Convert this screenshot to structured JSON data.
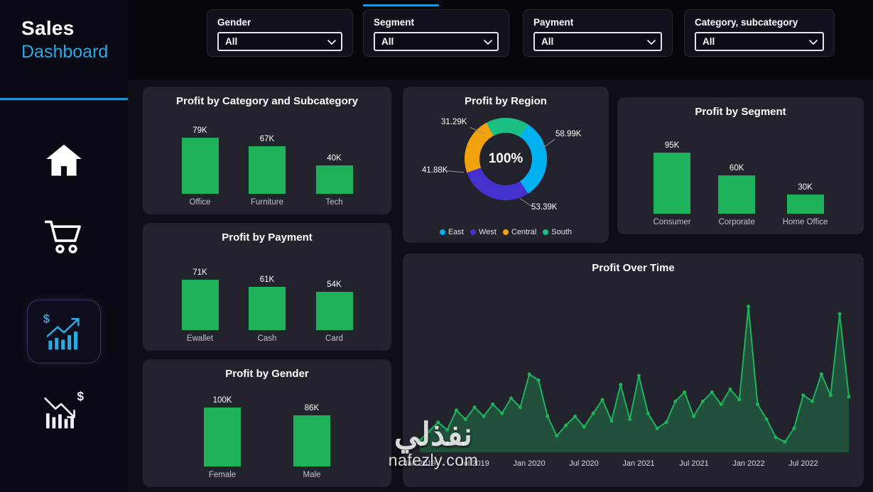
{
  "colors": {
    "accent_cyan": "#2da9e1",
    "accent_rule": "#1698d6",
    "green": "#1eb35b",
    "card_bg": "#23232e",
    "page_bg": "#06060d",
    "sidebar_bg": "#0a0a14"
  },
  "sidebar": {
    "title_line1": "Sales",
    "title_line2": "Dashboard"
  },
  "icons": {
    "home": "home-icon",
    "cart": "shopping-cart-icon",
    "sales_growth": "sales-growth-chart-icon",
    "sales_decline": "sales-decline-chart-icon",
    "dropdown": "chevron-down-icon"
  },
  "filters": [
    {
      "label": "Gender",
      "value": "All"
    },
    {
      "label": "Segment",
      "value": "All"
    },
    {
      "label": "Payment",
      "value": "All"
    },
    {
      "label": "Category, subcategory",
      "value": "All"
    }
  ],
  "watermark": {
    "line1": "نفذلي",
    "line2": "nafezly.com"
  },
  "chart_data": [
    {
      "id": "profit-by-category",
      "type": "bar",
      "title": "Profit by Category and Subcategory",
      "categories": [
        "Office",
        "Furniture",
        "Tech"
      ],
      "values": [
        79,
        67,
        40
      ],
      "value_labels": [
        "79K",
        "67K",
        "40K"
      ],
      "unit": "K",
      "ylim": [
        0,
        100
      ],
      "bar_color": "#1eb35b"
    },
    {
      "id": "profit-by-payment",
      "type": "bar",
      "title": "Profit by Payment",
      "categories": [
        "Ewallet",
        "Cash",
        "Card"
      ],
      "values": [
        71,
        61,
        54
      ],
      "value_labels": [
        "71K",
        "61K",
        "54K"
      ],
      "unit": "K",
      "ylim": [
        0,
        100
      ],
      "bar_color": "#1eb35b"
    },
    {
      "id": "profit-by-gender",
      "type": "bar",
      "title": "Profit by Gender",
      "categories": [
        "Female",
        "Male"
      ],
      "values": [
        100,
        86
      ],
      "value_labels": [
        "100K",
        "86K"
      ],
      "unit": "K",
      "ylim": [
        0,
        120
      ],
      "bar_color": "#1eb35b"
    },
    {
      "id": "profit-by-region",
      "type": "donut",
      "title": "Profit by Region",
      "center_label": "100%",
      "segments": [
        {
          "label": "East",
          "value": 58.99,
          "display": "58.99K",
          "color": "#00b1f2"
        },
        {
          "label": "West",
          "value": 53.39,
          "display": "53.39K",
          "color": "#4431ce"
        },
        {
          "label": "Central",
          "value": 41.88,
          "display": "41.88K",
          "color": "#f2a20c"
        },
        {
          "label": "South",
          "value": 31.29,
          "display": "31.29K",
          "color": "#1bbf83"
        }
      ],
      "display_order": [
        3,
        0,
        1,
        2
      ],
      "start_angle": -28,
      "legend_position": "bottom"
    },
    {
      "id": "profit-by-segment",
      "type": "bar",
      "title": "Profit by Segment",
      "categories": [
        "Consumer",
        "Corporate",
        "Home Office"
      ],
      "values": [
        95,
        60,
        30
      ],
      "value_labels": [
        "95K",
        "60K",
        "30K"
      ],
      "unit": "K",
      "ylim": [
        0,
        110
      ],
      "bar_color": "#1eb35b"
    },
    {
      "id": "profit-over-time",
      "type": "line",
      "title": "Profit Over Time",
      "x_labels": [
        "Jan 2019",
        "Jul 2019",
        "Jan 2020",
        "Jul 2020",
        "Jan 2021",
        "Jul 2021",
        "Jan 2022",
        "Jul 2022"
      ],
      "label_every": 6,
      "x_unit": "month",
      "x_start": "Jan 2019",
      "values": [
        0.6,
        1.2,
        1.8,
        1.3,
        2.6,
        2.0,
        2.8,
        2.2,
        3.0,
        2.4,
        3.4,
        2.8,
        5.0,
        4.6,
        2.2,
        0.9,
        1.6,
        2.2,
        1.5,
        2.4,
        3.3,
        1.9,
        4.3,
        2.0,
        4.9,
        2.4,
        1.4,
        1.8,
        3.2,
        3.8,
        2.2,
        3.2,
        3.8,
        3.0,
        4.0,
        3.3,
        9.5,
        3.0,
        2.0,
        0.8,
        0.5,
        1.4,
        3.6,
        3.2,
        5.0,
        3.6,
        9.0,
        3.5
      ],
      "ylim": [
        0,
        10
      ],
      "unit": "K",
      "line_color": "#1eb35b",
      "area_fill": "rgba(30,179,91,0.32)",
      "markers": true,
      "grid": false
    }
  ]
}
